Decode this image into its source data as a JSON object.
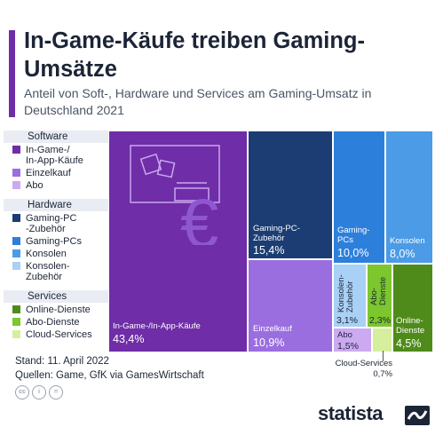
{
  "title": "In-Game-Käufe treiben Gaming-Umsätze",
  "subtitle": "Anteil von Soft-, Hardware und Services am Gaming-Umsatz in Deutschland 2021",
  "legend": [
    {
      "header": "Software",
      "items": [
        {
          "label": "In-Game-/\nIn-App-Käufe",
          "color": "#6f2da8"
        },
        {
          "label": "Einzelkauf",
          "color": "#9b6ee0"
        },
        {
          "label": "Abo",
          "color": "#cda9f2"
        }
      ]
    },
    {
      "header": "Hardware",
      "items": [
        {
          "label": "Gaming-PC\n-Zubehör",
          "color": "#1b3d73"
        },
        {
          "label": "Gaming-PCs",
          "color": "#2d7fdc"
        },
        {
          "label": "Konsolen",
          "color": "#4b9be6"
        },
        {
          "label": "Konsolen-\nZubehör",
          "color": "#a9d0f5"
        }
      ]
    },
    {
      "header": "Services",
      "items": [
        {
          "label": "Online-Dienste",
          "color": "#4f8b1a"
        },
        {
          "label": "Abo-Dienste",
          "color": "#7cc62e"
        },
        {
          "label": "Cloud-Services",
          "color": "#d6ef9c"
        }
      ]
    }
  ],
  "chart_data": {
    "type": "treemap",
    "title": "In-Game-Käufe treiben Gaming-Umsätze",
    "subtitle": "Anteil von Soft-, Hardware und Services am Gaming-Umsatz in Deutschland 2021",
    "unit": "%",
    "items": [
      {
        "name": "In-Game-/In-App-Käufe",
        "group": "Software",
        "value": 43.4,
        "label": "43,4%",
        "color": "#6f2da8"
      },
      {
        "name": "Einzelkauf",
        "group": "Software",
        "value": 10.9,
        "label": "10,9%",
        "color": "#9b6ee0"
      },
      {
        "name": "Abo",
        "group": "Software",
        "value": 1.5,
        "label": "1,5%",
        "color": "#cda9f2"
      },
      {
        "name": "Gaming-PC-Zubehör",
        "group": "Hardware",
        "value": 15.4,
        "label": "15,4%",
        "color": "#1b3d73"
      },
      {
        "name": "Gaming-PCs",
        "group": "Hardware",
        "value": 10.0,
        "label": "10,0%",
        "color": "#2d7fdc"
      },
      {
        "name": "Konsolen",
        "group": "Hardware",
        "value": 8.0,
        "label": "8,0%",
        "color": "#4b9be6"
      },
      {
        "name": "Konsolen-Zubehör",
        "group": "Hardware",
        "value": 3.1,
        "label": "3,1%",
        "color": "#a9d0f5"
      },
      {
        "name": "Online-Dienste",
        "group": "Services",
        "value": 4.5,
        "label": "4,5%",
        "color": "#4f8b1a"
      },
      {
        "name": "Abo-Dienste",
        "group": "Services",
        "value": 2.3,
        "label": "2,3%",
        "color": "#7cc62e"
      },
      {
        "name": "Cloud-Services",
        "group": "Services",
        "value": 0.7,
        "label": "0,7%",
        "color": "#d6ef9c"
      }
    ]
  },
  "tiles": {
    "ingame": {
      "label": "In-Game-/In-App-Käufe",
      "value": "43,4%"
    },
    "einzelkauf": {
      "label": "Einzelkauf",
      "value": "10,9%"
    },
    "pczubehoer": {
      "label": "Gaming-PC-\nZubehör",
      "value": "15,4%"
    },
    "gamingpcs": {
      "label": "Gaming-\nPCs",
      "value": "10,0%"
    },
    "konsolen": {
      "label": "Konsolen",
      "value": "8,0%"
    },
    "konsolenzubehoer": {
      "label": "Konsolen-\nZubehör",
      "value": "3,1%"
    },
    "abodienste": {
      "label": "Abo-\nDienste",
      "value": "2,3%"
    },
    "onlinedienste": {
      "label": "Online-\nDienste",
      "value": "4,5%"
    },
    "abo": {
      "label": "Abo",
      "value": "1,5%"
    },
    "cloud": {
      "label": "Cloud-Services",
      "value": "0,7%"
    }
  },
  "footer": {
    "stand": "Stand: 11. April 2022",
    "quellen": "Quellen: Game, GfK via GamesWirtschaft"
  },
  "cc_icons": [
    "cc",
    "i",
    "="
  ],
  "brand": "statista",
  "euro_symbol": "€"
}
